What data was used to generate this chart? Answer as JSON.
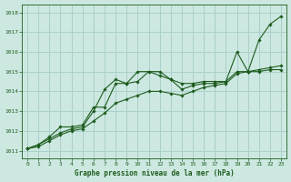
{
  "xlabel": "Graphe pression niveau de la mer (hPa)",
  "bg_color": "#cce8e0",
  "grid_color": "#aacfca",
  "line_color": "#1e5c1e",
  "text_color": "#1e5c1e",
  "ylim": [
    1010.6,
    1018.4
  ],
  "xlim": [
    -0.5,
    23.5
  ],
  "yticks": [
    1011,
    1012,
    1013,
    1014,
    1015,
    1016,
    1017,
    1018
  ],
  "xticks": [
    0,
    1,
    2,
    3,
    4,
    5,
    6,
    7,
    8,
    9,
    10,
    11,
    12,
    13,
    14,
    15,
    16,
    17,
    18,
    19,
    20,
    21,
    22,
    23
  ],
  "series": [
    [
      1011.1,
      1011.3,
      1011.6,
      1011.9,
      1012.1,
      1012.2,
      1013.0,
      1014.1,
      1014.6,
      1014.4,
      1015.0,
      1015.0,
      1015.0,
      1014.6,
      1014.1,
      1014.3,
      1014.4,
      1014.4,
      1014.5,
      1016.0,
      1015.0,
      1016.6,
      1017.4,
      1017.8
    ],
    [
      1011.1,
      1011.3,
      1011.7,
      1012.2,
      1012.2,
      1012.3,
      1013.2,
      1013.2,
      1014.4,
      1014.4,
      1014.5,
      1015.0,
      1014.8,
      1014.6,
      1014.4,
      1014.4,
      1014.5,
      1014.5,
      1014.5,
      1015.0,
      1015.0,
      1015.0,
      1015.1,
      1015.1
    ],
    [
      1011.1,
      1011.2,
      1011.5,
      1011.8,
      1012.0,
      1012.1,
      1012.5,
      1012.9,
      1013.4,
      1013.6,
      1013.8,
      1014.0,
      1014.0,
      1013.9,
      1013.8,
      1014.0,
      1014.2,
      1014.3,
      1014.4,
      1014.9,
      1015.0,
      1015.1,
      1015.2,
      1015.3
    ]
  ]
}
